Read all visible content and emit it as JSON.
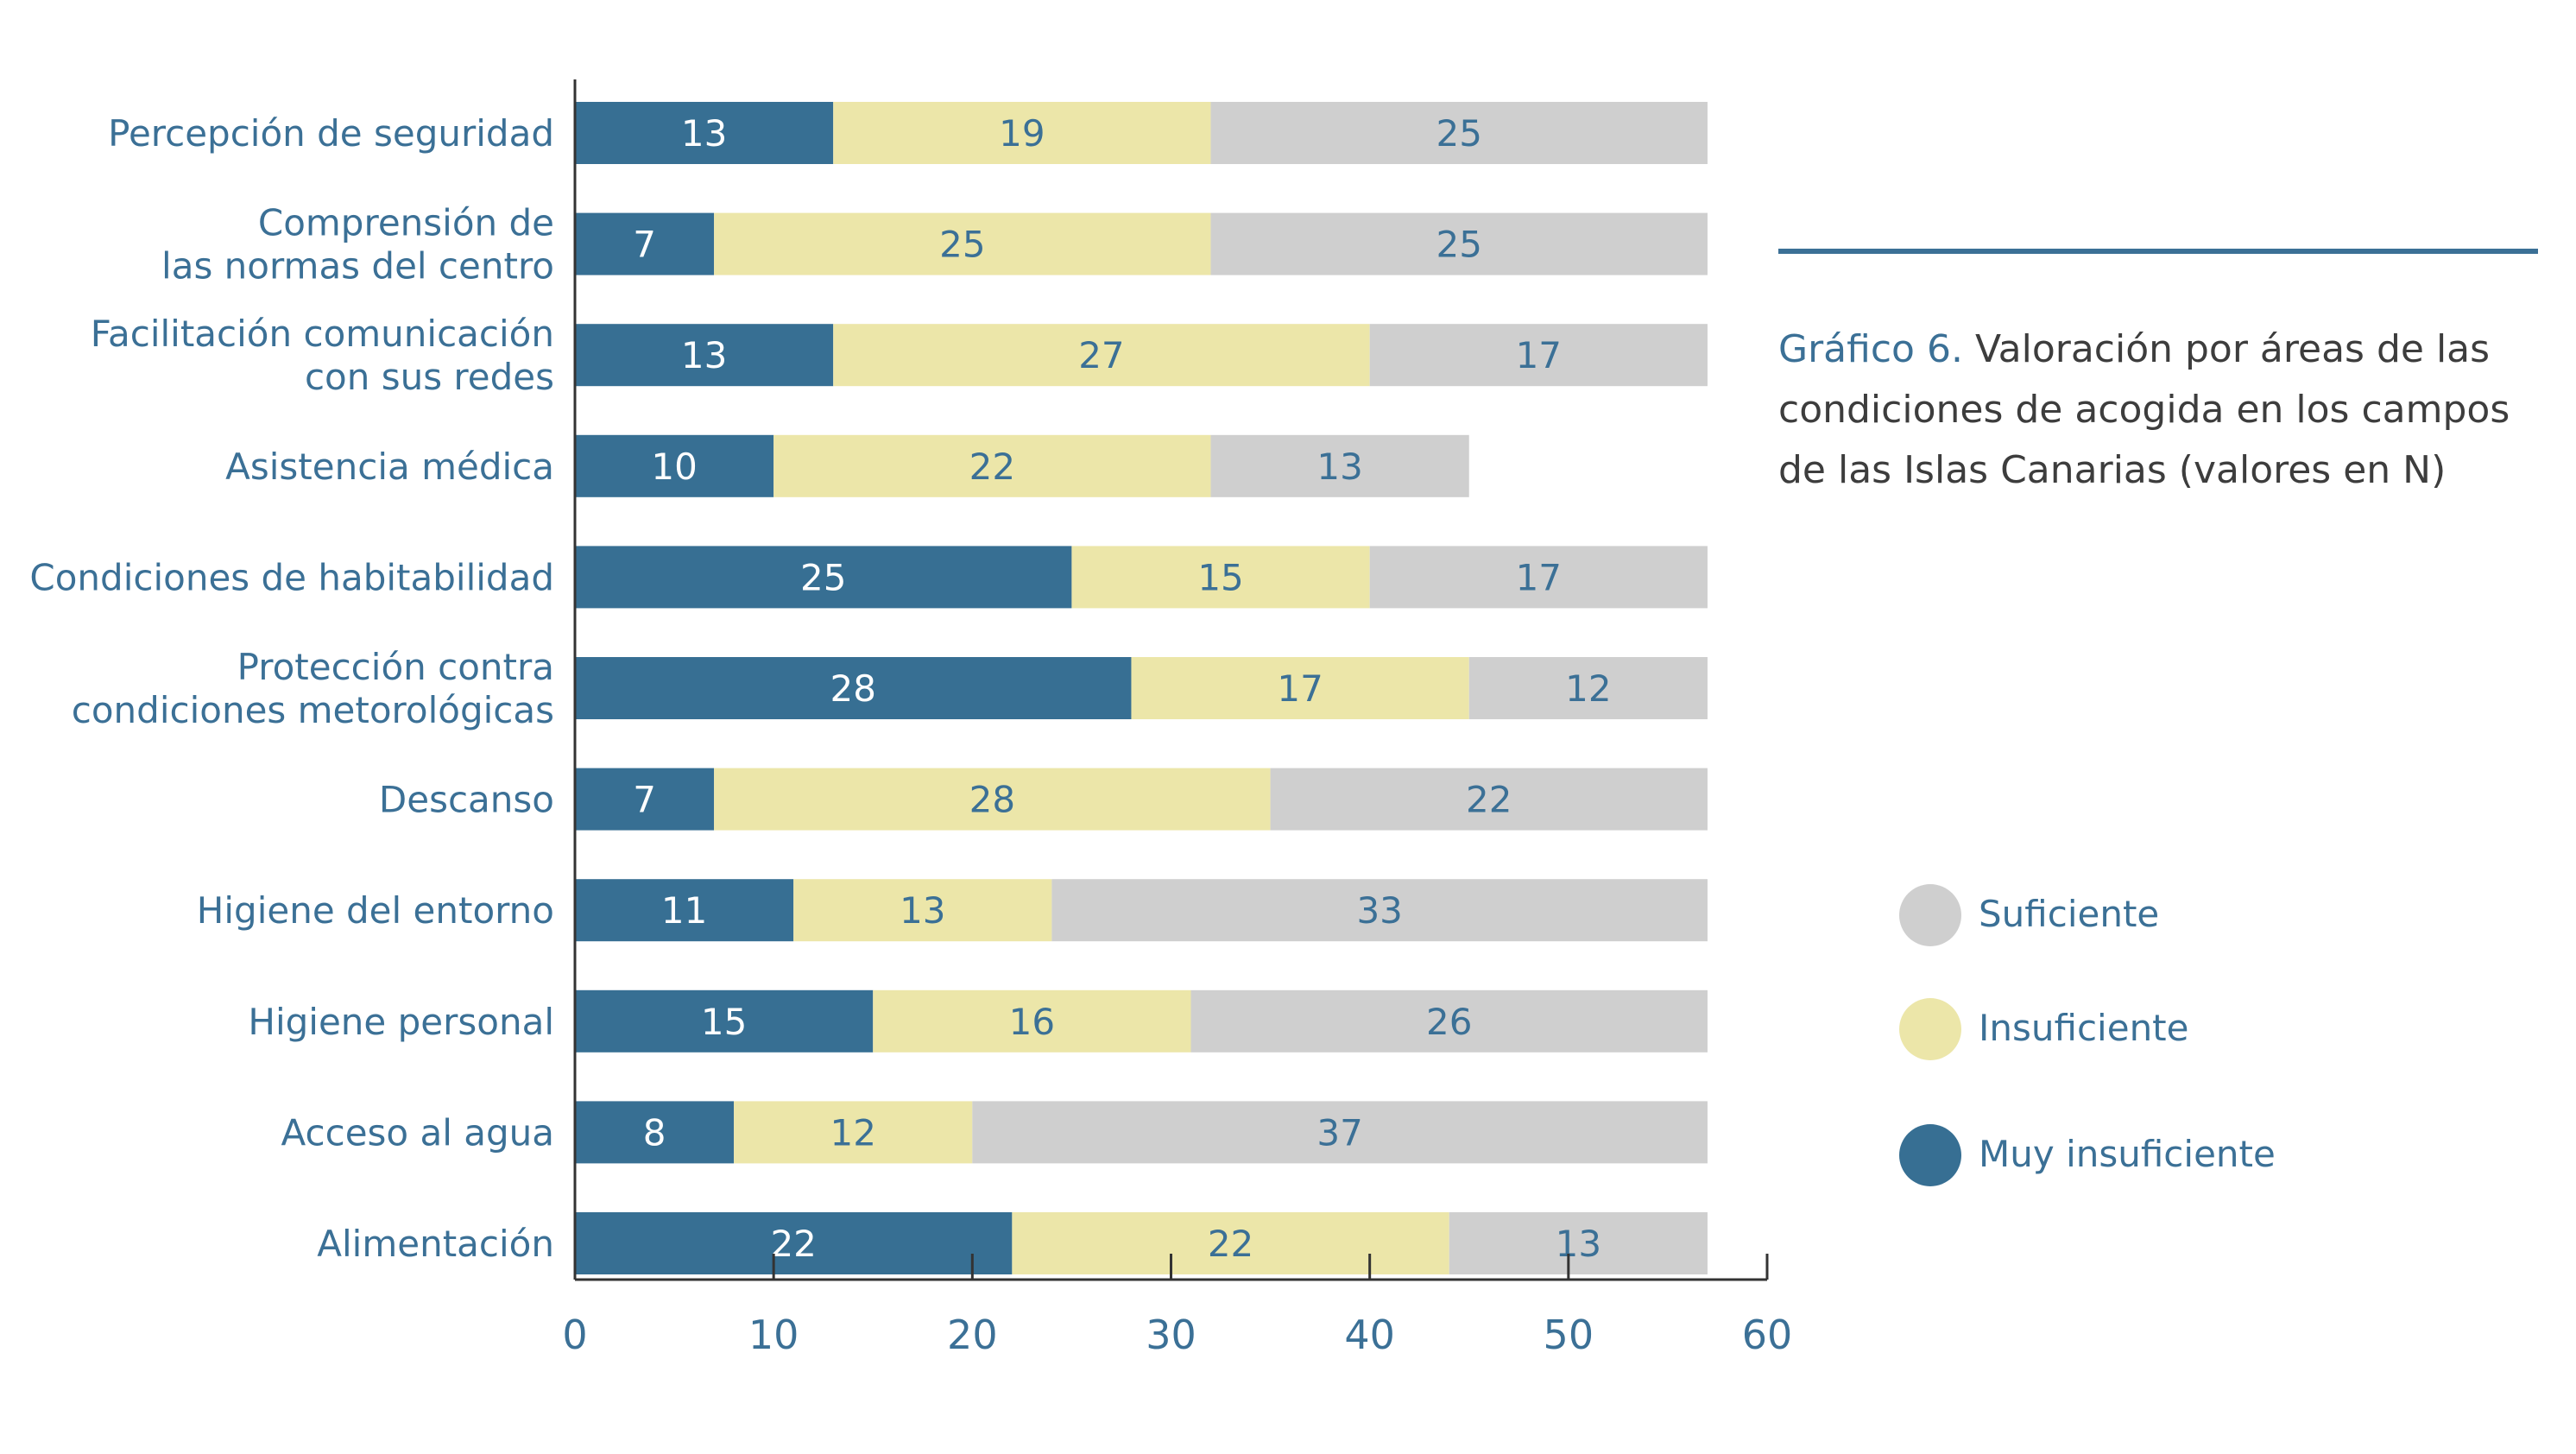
{
  "chart_data": {
    "type": "bar",
    "orientation": "horizontal",
    "stacked": true,
    "title": "",
    "caption": {
      "label": "Gráfico 6.",
      "text": "Valoración por áreas de las condiciones de acogida en los campos de las Islas Canarias (valores en N)"
    },
    "categories": [
      [
        "Percepción de seguridad"
      ],
      [
        "Comprensión de",
        "las normas del centro"
      ],
      [
        "Facilitación comunicación",
        "con sus redes"
      ],
      [
        "Asistencia médica"
      ],
      [
        "Condiciones de habitabilidad"
      ],
      [
        "Protección contra",
        "condiciones metorológicas"
      ],
      [
        "Descanso"
      ],
      [
        "Higiene del entorno"
      ],
      [
        "Higiene personal"
      ],
      [
        "Acceso al agua"
      ],
      [
        "Alimentación"
      ]
    ],
    "series": [
      {
        "name": "Muy insuficiente",
        "color": "#376f93",
        "label_color": "#ffffff",
        "values": [
          13,
          7,
          13,
          10,
          25,
          28,
          7,
          11,
          15,
          8,
          22
        ]
      },
      {
        "name": "Insuficiente",
        "color": "#ece6a9",
        "label_color": "#3b7096",
        "values": [
          19,
          25,
          27,
          22,
          15,
          17,
          28,
          13,
          16,
          12,
          22
        ]
      },
      {
        "name": "Suficiente",
        "color": "#cfcfcf",
        "label_color": "#3b7096",
        "values": [
          25,
          25,
          17,
          13,
          17,
          12,
          22,
          33,
          26,
          37,
          13
        ]
      }
    ],
    "legend_order": [
      "Suficiente",
      "Insuficiente",
      "Muy insuficiente"
    ],
    "xlim": [
      0,
      60
    ],
    "xticks": [
      0,
      10,
      20,
      30,
      40,
      50,
      60
    ],
    "xlabel": "",
    "ylabel": "",
    "grid": false,
    "legend_position": "right",
    "colors": {
      "axis_text": "#3b7096",
      "axis_line": "#333333",
      "caption_text": "#3d3d3d"
    }
  }
}
